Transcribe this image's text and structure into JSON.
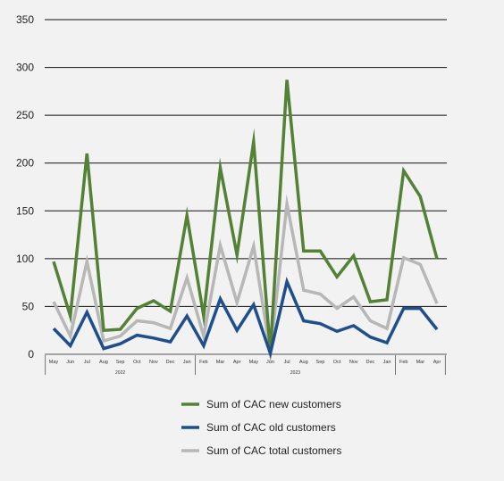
{
  "chart_data": {
    "type": "line",
    "categories": [
      "May",
      "Jun",
      "Jul",
      "Aug",
      "Sep",
      "Oct",
      "Nov",
      "Dec",
      "Jan",
      "Feb",
      "Mar",
      "Apr",
      "May",
      "Jun",
      "Jul",
      "Aug",
      "Sep",
      "Oct",
      "Nov",
      "Dec",
      "Jan",
      "Feb",
      "Mar",
      "Apr"
    ],
    "year_labels": [
      {
        "label": "2022",
        "start": 0,
        "end": 8
      },
      {
        "label": "2023",
        "start": 9,
        "end": 20
      },
      {
        "label": "",
        "start": 21,
        "end": 23
      }
    ],
    "series": [
      {
        "name": "Sum of CAC new customers",
        "color": "#538135",
        "values": [
          97,
          40,
          210,
          25,
          26,
          48,
          56,
          45,
          145,
          40,
          195,
          104,
          222,
          3,
          287,
          108,
          108,
          81,
          103,
          55,
          57,
          192,
          165,
          100
        ]
      },
      {
        "name": "Sum of CAC old customers",
        "color": "#1f4e8c",
        "values": [
          27,
          9,
          44,
          6,
          11,
          20,
          17,
          13,
          40,
          9,
          58,
          25,
          52,
          1,
          76,
          35,
          32,
          24,
          30,
          18,
          12,
          48,
          48,
          26
        ]
      },
      {
        "name": "Sum of CAC total customers",
        "color": "#b7b7b7",
        "values": [
          55,
          19,
          97,
          14,
          19,
          35,
          33,
          27,
          80,
          19,
          114,
          54,
          113,
          2,
          157,
          67,
          63,
          48,
          60,
          35,
          27,
          101,
          94,
          53
        ]
      }
    ],
    "yticks": [
      "0",
      "50",
      "100",
      "150",
      "200",
      "250",
      "300",
      "350"
    ],
    "ylim": [
      0,
      350
    ],
    "grid": true,
    "legend_position": "bottom-center"
  }
}
